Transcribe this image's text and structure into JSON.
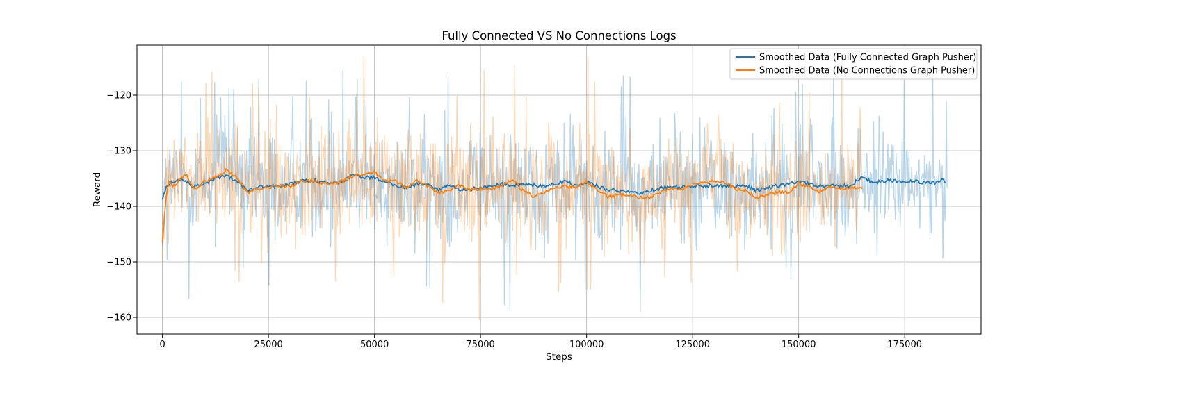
{
  "chart_data": {
    "type": "line",
    "title": "Fully Connected VS No Connections Logs",
    "xlabel": "Steps",
    "ylabel": "Reward",
    "xlim": [
      -6000,
      193000
    ],
    "ylim": [
      -163,
      -111
    ],
    "x_ticks": [
      0,
      25000,
      50000,
      75000,
      100000,
      125000,
      150000,
      175000
    ],
    "y_ticks": [
      -160,
      -150,
      -140,
      -130,
      -120
    ],
    "grid": true,
    "legend_position": "top-right",
    "colors": {
      "series1": "#1f77b4",
      "series2": "#ff7f0e"
    },
    "series": [
      {
        "name": "Smoothed Data (Fully Connected Graph Pusher)",
        "color": "#1f77b4",
        "x_end": 185000,
        "raw_mean": -136,
        "raw_min": -159,
        "raw_max": -115.5,
        "smoothed": [
          [
            0,
            -138.5
          ],
          [
            1000,
            -136.5
          ],
          [
            2500,
            -135.5
          ],
          [
            5000,
            -135.2
          ],
          [
            7500,
            -136.5
          ],
          [
            10000,
            -135.8
          ],
          [
            12500,
            -135.0
          ],
          [
            15000,
            -134.5
          ],
          [
            17500,
            -135.5
          ],
          [
            20000,
            -137.2
          ],
          [
            22500,
            -136.5
          ],
          [
            25000,
            -136.3
          ],
          [
            27500,
            -136.5
          ],
          [
            30000,
            -136.0
          ],
          [
            32500,
            -135.5
          ],
          [
            35000,
            -135.3
          ],
          [
            37500,
            -135.6
          ],
          [
            40000,
            -135.8
          ],
          [
            42500,
            -135.6
          ],
          [
            45000,
            -134.3
          ],
          [
            47500,
            -134.8
          ],
          [
            50000,
            -134.8
          ],
          [
            52500,
            -135.6
          ],
          [
            55000,
            -136.3
          ],
          [
            57500,
            -136.7
          ],
          [
            60000,
            -136.0
          ],
          [
            62500,
            -136.0
          ],
          [
            65000,
            -137.2
          ],
          [
            67500,
            -136.2
          ],
          [
            70000,
            -137.0
          ],
          [
            72500,
            -137.0
          ],
          [
            75000,
            -136.6
          ],
          [
            77500,
            -136.5
          ],
          [
            80000,
            -136.0
          ],
          [
            82500,
            -136.3
          ],
          [
            85000,
            -136.0
          ],
          [
            87500,
            -136.2
          ],
          [
            90000,
            -136.5
          ],
          [
            92500,
            -136.0
          ],
          [
            95000,
            -135.5
          ],
          [
            97500,
            -136.3
          ],
          [
            100000,
            -135.6
          ],
          [
            102500,
            -136.4
          ],
          [
            105000,
            -137.0
          ],
          [
            107500,
            -137.2
          ],
          [
            110000,
            -137.4
          ],
          [
            112500,
            -137.8
          ],
          [
            115000,
            -137.2
          ],
          [
            117500,
            -136.7
          ],
          [
            120000,
            -136.5
          ],
          [
            122500,
            -136.6
          ],
          [
            125000,
            -136.3
          ],
          [
            127500,
            -136.4
          ],
          [
            130000,
            -136.2
          ],
          [
            132500,
            -136.4
          ],
          [
            135000,
            -136.3
          ],
          [
            137500,
            -136.2
          ],
          [
            140000,
            -137.2
          ],
          [
            142500,
            -136.8
          ],
          [
            145000,
            -136.3
          ],
          [
            147500,
            -136.0
          ],
          [
            150000,
            -135.5
          ],
          [
            152500,
            -136.0
          ],
          [
            155000,
            -136.4
          ],
          [
            157500,
            -136.2
          ],
          [
            160000,
            -136.3
          ],
          [
            162500,
            -136.2
          ],
          [
            165000,
            -134.5
          ],
          [
            167500,
            -135.8
          ],
          [
            170000,
            -135.4
          ],
          [
            172500,
            -135.3
          ],
          [
            175000,
            -135.6
          ],
          [
            177500,
            -135.5
          ],
          [
            180000,
            -135.8
          ],
          [
            182500,
            -135.7
          ],
          [
            184000,
            -135.2
          ],
          [
            185000,
            -135.8
          ]
        ]
      },
      {
        "name": "Smoothed Data (No Connections Graph Pusher)",
        "color": "#ff7f0e",
        "x_end": 165000,
        "raw_mean": -136.5,
        "raw_min": -160.5,
        "raw_max": -113,
        "smoothed": [
          [
            0,
            -146.5
          ],
          [
            800,
            -139.0
          ],
          [
            1500,
            -135.5
          ],
          [
            2500,
            -136.5
          ],
          [
            4000,
            -135.2
          ],
          [
            5500,
            -134.2
          ],
          [
            7500,
            -137.0
          ],
          [
            10000,
            -135.5
          ],
          [
            12500,
            -134.8
          ],
          [
            15000,
            -133.6
          ],
          [
            17500,
            -134.8
          ],
          [
            20000,
            -137.5
          ],
          [
            22500,
            -136.8
          ],
          [
            25000,
            -136.8
          ],
          [
            27500,
            -136.2
          ],
          [
            30000,
            -136.5
          ],
          [
            32500,
            -135.5
          ],
          [
            35000,
            -135.3
          ],
          [
            37500,
            -135.8
          ],
          [
            40000,
            -136.0
          ],
          [
            42500,
            -135.5
          ],
          [
            45000,
            -134.5
          ],
          [
            47500,
            -134.2
          ],
          [
            50000,
            -133.8
          ],
          [
            52500,
            -135.5
          ],
          [
            55000,
            -135.5
          ],
          [
            57500,
            -136.7
          ],
          [
            60000,
            -135.3
          ],
          [
            62500,
            -136.3
          ],
          [
            65000,
            -137.5
          ],
          [
            67500,
            -137.2
          ],
          [
            70000,
            -136.2
          ],
          [
            72500,
            -137.0
          ],
          [
            75000,
            -136.8
          ],
          [
            77500,
            -137.0
          ],
          [
            80000,
            -136.2
          ],
          [
            82500,
            -135.2
          ],
          [
            85000,
            -137.2
          ],
          [
            87500,
            -138.2
          ],
          [
            90000,
            -137.5
          ],
          [
            92500,
            -136.5
          ],
          [
            95000,
            -136.5
          ],
          [
            97500,
            -136.5
          ],
          [
            100000,
            -135.6
          ],
          [
            102500,
            -137.0
          ],
          [
            105000,
            -138.3
          ],
          [
            107500,
            -138.0
          ],
          [
            110000,
            -137.8
          ],
          [
            112500,
            -138.5
          ],
          [
            115000,
            -138.3
          ],
          [
            117500,
            -137.5
          ],
          [
            120000,
            -136.7
          ],
          [
            122500,
            -137.0
          ],
          [
            125000,
            -136.0
          ],
          [
            127500,
            -135.8
          ],
          [
            130000,
            -135.3
          ],
          [
            132500,
            -135.8
          ],
          [
            135000,
            -136.8
          ],
          [
            137500,
            -137.2
          ],
          [
            140000,
            -138.3
          ],
          [
            142500,
            -138.0
          ],
          [
            145000,
            -137.4
          ],
          [
            147500,
            -137.5
          ],
          [
            150000,
            -136.0
          ],
          [
            152500,
            -136.5
          ],
          [
            155000,
            -137.5
          ],
          [
            157500,
            -136.5
          ],
          [
            160000,
            -136.8
          ],
          [
            162500,
            -136.8
          ],
          [
            165000,
            -136.5
          ]
        ]
      }
    ]
  }
}
